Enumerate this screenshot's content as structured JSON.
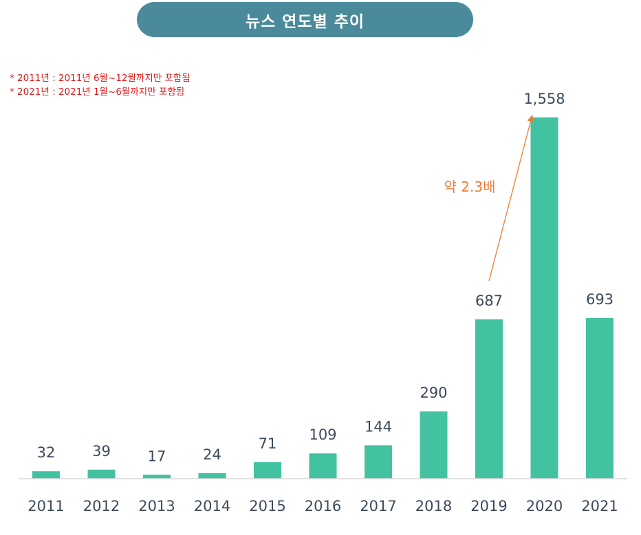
{
  "title": "뉴스 연도별 추이",
  "notes": [
    "* 2011년 : 2011년 6월~12월까지만 포함됨",
    "* 2021년 : 2021년 1월~6월까지만 포함됨"
  ],
  "annotation": {
    "text": "약 2.3배",
    "from": "2019",
    "to": "2020",
    "color": "#ed7d31"
  },
  "colors": {
    "bar": "#43c2a2",
    "title_bg": "#4a8a9a",
    "note": "#e01818",
    "label": "#3b4a5a",
    "axis": "#d9d9d9"
  },
  "chart_data": {
    "type": "bar",
    "title": "뉴스 연도별 추이",
    "categories": [
      "2011",
      "2012",
      "2013",
      "2014",
      "2015",
      "2016",
      "2017",
      "2018",
      "2019",
      "2020",
      "2021"
    ],
    "values": [
      32,
      39,
      17,
      24,
      71,
      109,
      144,
      290,
      687,
      1558,
      693
    ],
    "value_labels": [
      "32",
      "39",
      "17",
      "24",
      "71",
      "109",
      "144",
      "290",
      "687",
      "1,558",
      "693"
    ],
    "xlabel": "",
    "ylabel": "",
    "ylim": [
      0,
      1558
    ],
    "grid": false,
    "legend": "none"
  }
}
